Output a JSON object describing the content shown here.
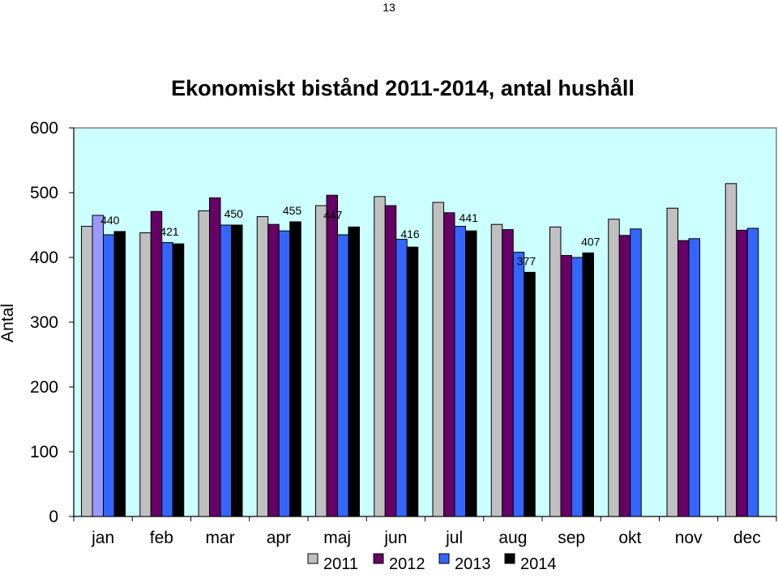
{
  "page": {
    "number": "13"
  },
  "chart_data": {
    "type": "bar",
    "title": "Ekonomiskt bistånd 2011-2014, antal hushåll",
    "xlabel": "",
    "ylabel": "Antal",
    "ylim": [
      0,
      600
    ],
    "yticks": [
      "0",
      "100",
      "200",
      "300",
      "400",
      "500",
      "600"
    ],
    "grid": false,
    "plot_background": "#ccffff",
    "legend_position": "bottom",
    "categories": [
      "jan",
      "feb",
      "mar",
      "apr",
      "maj",
      "jun",
      "jul",
      "aug",
      "sep",
      "okt",
      "nov",
      "dec"
    ],
    "series": [
      {
        "name": "2011",
        "color": "#c0c0c0",
        "values": [
          448,
          438,
          472,
          463,
          480,
          494,
          485,
          451,
          447,
          459,
          476,
          514
        ]
      },
      {
        "name": "2012",
        "color": "#660066",
        "values": [
          465,
          471,
          492,
          451,
          496,
          480,
          469,
          443,
          403,
          434,
          426,
          442
        ]
      },
      {
        "name": "2013",
        "color": "#3366ff",
        "values": [
          435,
          423,
          450,
          441,
          435,
          428,
          448,
          408,
          400,
          444,
          429,
          445
        ]
      },
      {
        "name": "2014",
        "color": "#000000",
        "values": [
          440,
          421,
          450,
          455,
          447,
          416,
          441,
          377,
          407,
          null,
          null,
          null
        ],
        "data_labels": [
          "440",
          "421",
          "450",
          "455",
          "447",
          "416",
          "441",
          "377",
          "407"
        ]
      }
    ],
    "highlight": {
      "category": "jan",
      "series": "2012",
      "color": "#9999ff"
    }
  }
}
